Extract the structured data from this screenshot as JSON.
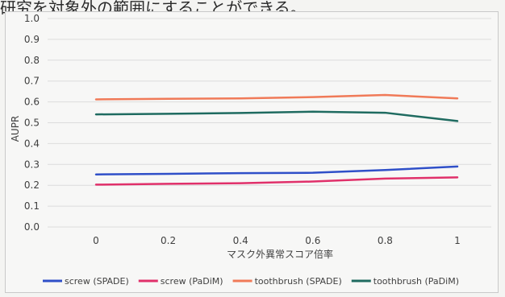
{
  "page": {
    "top_text": "研究を対象外の範囲にすることができる。"
  },
  "chart_data": {
    "type": "line",
    "title": "",
    "xlabel": "マスク外異常スコア倍率",
    "ylabel": "AUPR",
    "x": [
      0,
      0.2,
      0.4,
      0.6,
      0.8,
      1
    ],
    "x_tick_labels": [
      "0",
      "0.2",
      "0.4",
      "0.6",
      "0.8",
      "1"
    ],
    "ylim": [
      0,
      1
    ],
    "y_ticks": [
      0,
      0.1,
      0.2,
      0.3,
      0.4,
      0.5,
      0.6,
      0.7,
      0.8,
      0.9,
      1.0
    ],
    "y_tick_labels": [
      "0.0",
      "0.1",
      "0.2",
      "0.3",
      "0.4",
      "0.5",
      "0.6",
      "0.7",
      "0.8",
      "0.9",
      "1.0"
    ],
    "grid": true,
    "legend_position": "bottom",
    "series": [
      {
        "name": "screw (SPADE)",
        "color": "#2f4fc8",
        "values": [
          0.252,
          0.255,
          0.258,
          0.26,
          0.273,
          0.29
        ]
      },
      {
        "name": "screw (PaDiM)",
        "color": "#e0306a",
        "values": [
          0.203,
          0.207,
          0.21,
          0.218,
          0.232,
          0.238
        ]
      },
      {
        "name": "toothbrush (SPADE)",
        "color": "#f07a58",
        "values": [
          0.612,
          0.615,
          0.617,
          0.623,
          0.633,
          0.617
        ]
      },
      {
        "name": "toothbrush (PaDiM)",
        "color": "#1f6b60",
        "values": [
          0.54,
          0.543,
          0.547,
          0.553,
          0.548,
          0.508
        ]
      }
    ]
  }
}
